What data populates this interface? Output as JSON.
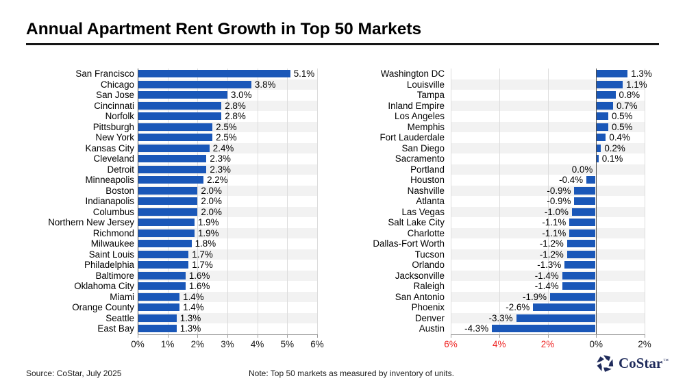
{
  "title": "Annual Apartment Rent Growth in Top 50 Markets",
  "footer": {
    "source": "Source: CoStar, July 2025",
    "note": "Note: Top 50 markets as measured by inventory of units.",
    "logo_text": "CoStar",
    "trademark": "™"
  },
  "colors": {
    "bar": "#1a57b8",
    "band": "#f2f2f2",
    "grid": "#dcdcdc",
    "axis": "#9e9e9e",
    "zero": "#4d4d4d",
    "tick_text": "#1a1a1a",
    "negative_tick_text": "#ee2524",
    "logo_navy": "#1f2b5b"
  },
  "chart_data": [
    {
      "type": "bar",
      "orientation": "horizontal",
      "title": "",
      "xlabel": "",
      "ylabel": "",
      "value_suffix": "%",
      "xlim": [
        0,
        6
      ],
      "grid": true,
      "xticks": [
        {
          "v": 0,
          "label": "0%",
          "negative": false
        },
        {
          "v": 1,
          "label": "1%",
          "negative": false
        },
        {
          "v": 2,
          "label": "2%",
          "negative": false
        },
        {
          "v": 3,
          "label": "3%",
          "negative": false
        },
        {
          "v": 4,
          "label": "4%",
          "negative": false
        },
        {
          "v": 5,
          "label": "5%",
          "negative": false
        },
        {
          "v": 6,
          "label": "6%",
          "negative": false
        }
      ],
      "categories": [
        "San Francisco",
        "Chicago",
        "San Jose",
        "Cincinnati",
        "Norfolk",
        "Pittsburgh",
        "New York",
        "Kansas City",
        "Cleveland",
        "Detroit",
        "Minneapolis",
        "Boston",
        "Indianapolis",
        "Columbus",
        "Northern New Jersey",
        "Richmond",
        "Milwaukee",
        "Saint Louis",
        "Philadelphia",
        "Baltimore",
        "Oklahoma City",
        "Miami",
        "Orange County",
        "Seattle",
        "East Bay"
      ],
      "values": [
        5.1,
        3.8,
        3.0,
        2.8,
        2.8,
        2.5,
        2.5,
        2.4,
        2.3,
        2.3,
        2.2,
        2.0,
        2.0,
        2.0,
        1.9,
        1.9,
        1.8,
        1.7,
        1.7,
        1.6,
        1.6,
        1.4,
        1.4,
        1.3,
        1.3
      ]
    },
    {
      "type": "bar",
      "orientation": "horizontal",
      "title": "",
      "xlabel": "",
      "ylabel": "",
      "value_suffix": "%",
      "xlim": [
        -6,
        2
      ],
      "grid": true,
      "xticks": [
        {
          "v": -6,
          "label": "6%",
          "negative": true
        },
        {
          "v": -4,
          "label": "4%",
          "negative": true
        },
        {
          "v": -2,
          "label": "2%",
          "negative": true
        },
        {
          "v": 0,
          "label": "0%",
          "negative": false
        },
        {
          "v": 2,
          "label": "2%",
          "negative": false
        }
      ],
      "categories": [
        "Washington DC",
        "Louisville",
        "Tampa",
        "Inland Empire",
        "Los Angeles",
        "Memphis",
        "Fort Lauderdale",
        "San Diego",
        "Sacramento",
        "Portland",
        "Houston",
        "Nashville",
        "Atlanta",
        "Las Vegas",
        "Salt Lake City",
        "Charlotte",
        "Dallas-Fort Worth",
        "Tucson",
        "Orlando",
        "Jacksonville",
        "Raleigh",
        "San Antonio",
        "Phoenix",
        "Denver",
        "Austin"
      ],
      "values": [
        1.3,
        1.1,
        0.8,
        0.7,
        0.5,
        0.5,
        0.4,
        0.2,
        0.1,
        0.0,
        -0.4,
        -0.9,
        -0.9,
        -1.0,
        -1.1,
        -1.1,
        -1.2,
        -1.2,
        -1.3,
        -1.4,
        -1.4,
        -1.9,
        -2.6,
        -3.3,
        -4.3
      ]
    }
  ]
}
